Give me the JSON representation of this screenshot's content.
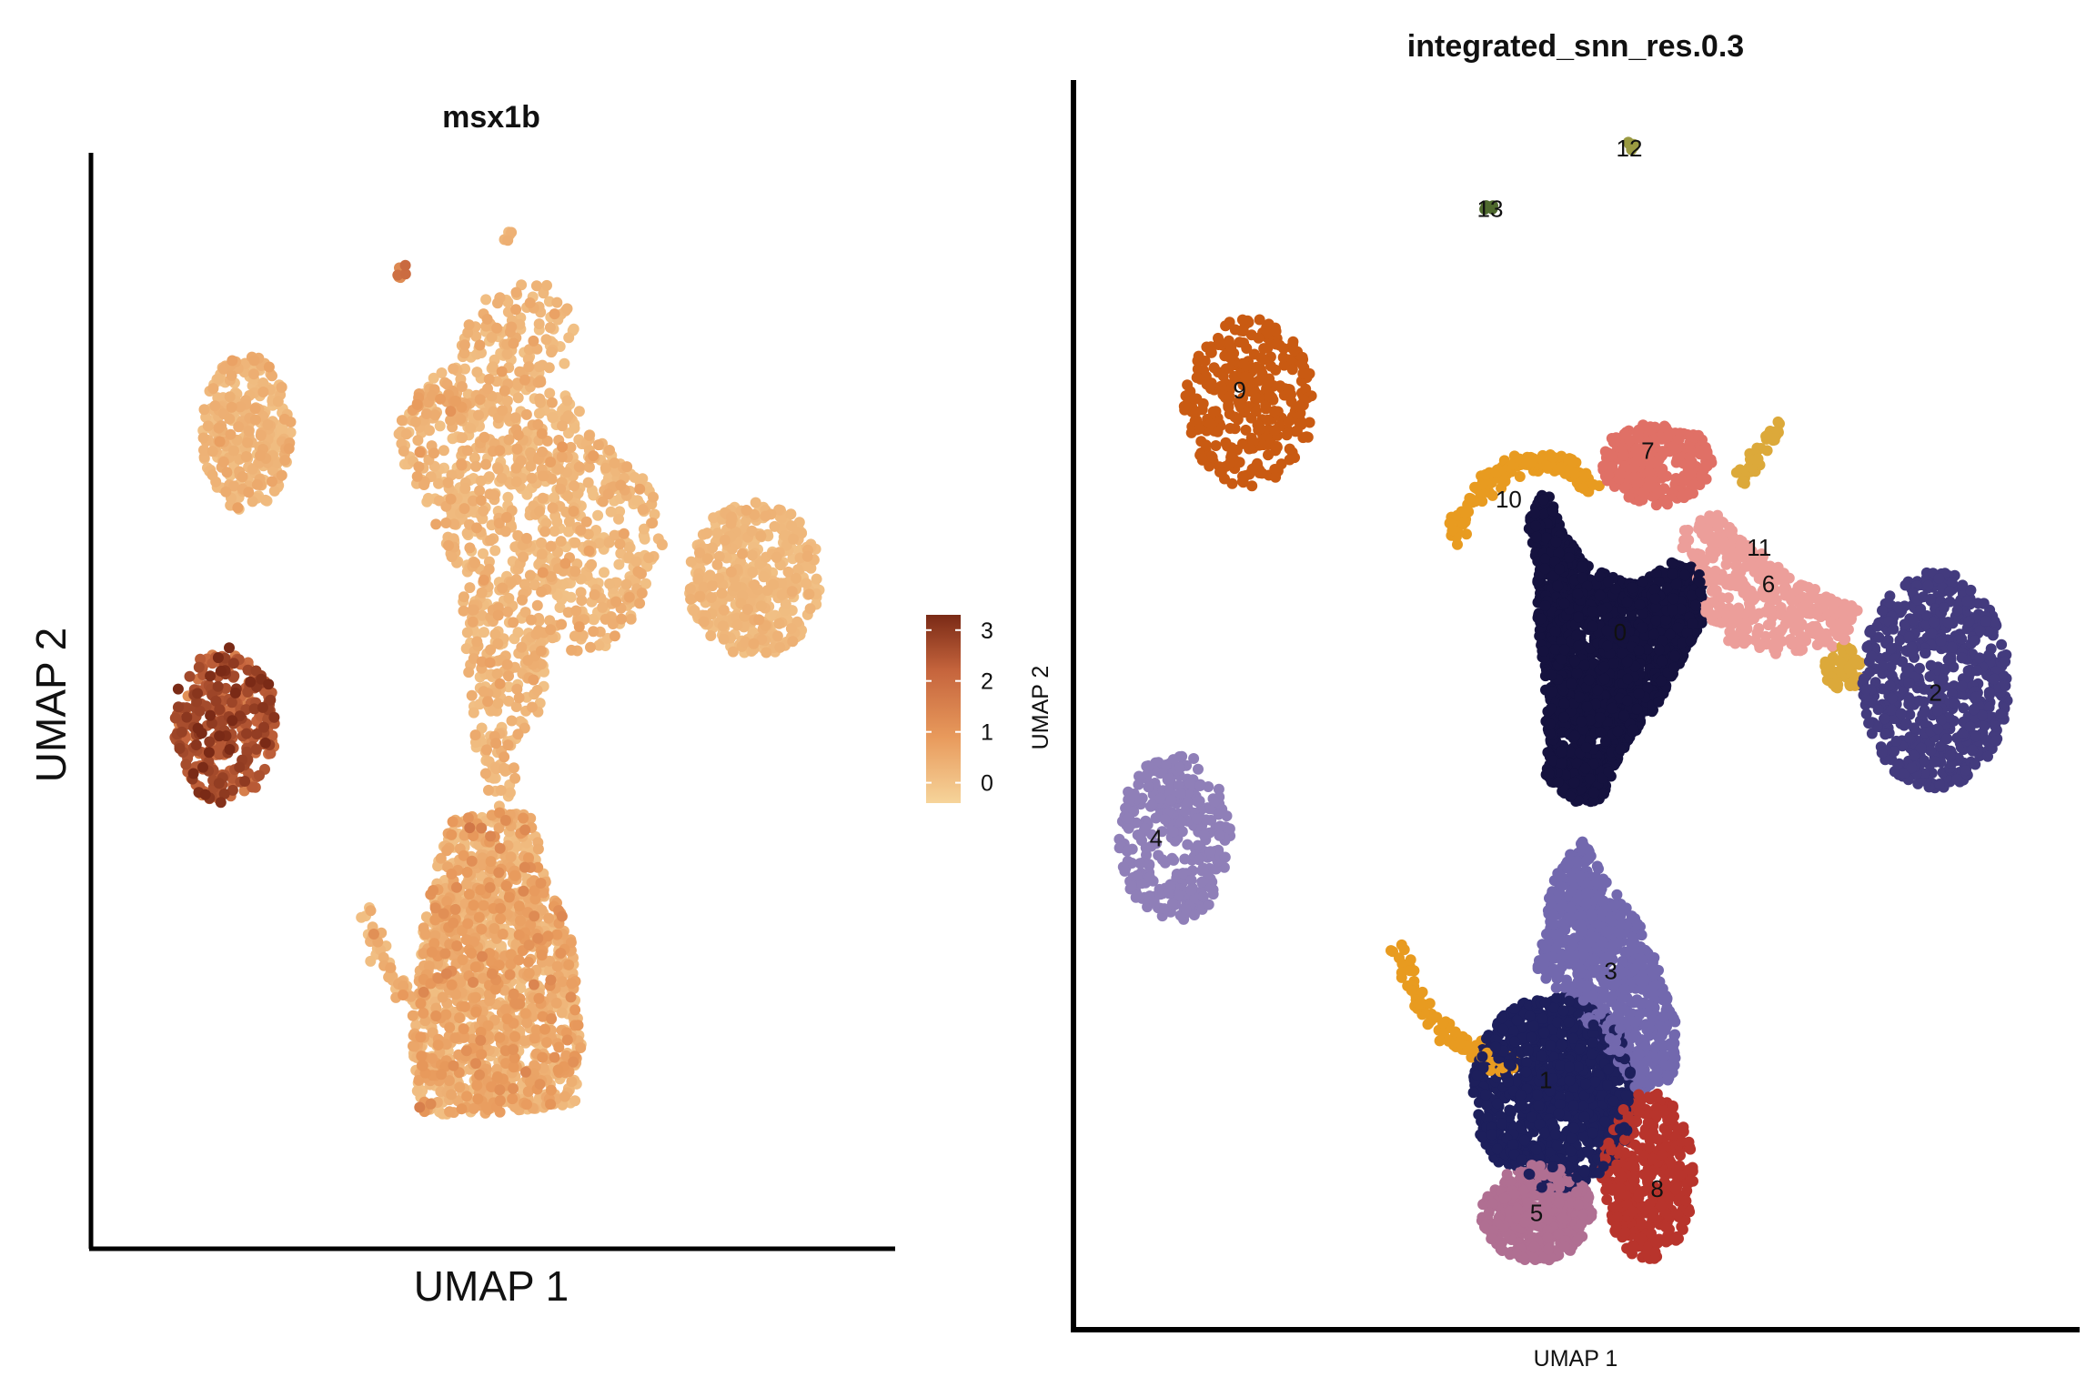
{
  "chart_data": [
    {
      "type": "scatter",
      "title": "msx1b",
      "xlabel": "UMAP 1",
      "ylabel": "UMAP 2",
      "xlim": [
        0,
        100
      ],
      "ylim": [
        0,
        100
      ],
      "grid": false,
      "legend": {
        "type": "colorbar",
        "placement": "right",
        "ticks": [
          0,
          1,
          2,
          3
        ],
        "tick_labels": [
          "0",
          "1",
          "2",
          "3"
        ],
        "range": [
          -0.4,
          3.3
        ],
        "colors": [
          "#f6d49a",
          "#e89a5c",
          "#c6653d",
          "#7a2a16"
        ]
      },
      "regions": [
        {
          "name": "main-upper-stem",
          "shape": "polygon",
          "points": [
            [
              47,
              91
            ],
            [
              55,
              93
            ],
            [
              58,
              92
            ],
            [
              60,
              88
            ],
            [
              58,
              82
            ],
            [
              64,
              76
            ],
            [
              70,
              72
            ],
            [
              72,
              66
            ],
            [
              68,
              58
            ],
            [
              64,
              55
            ],
            [
              57,
              54
            ],
            [
              55,
              48
            ],
            [
              52,
              42
            ],
            [
              52,
              36
            ],
            [
              49,
              36
            ],
            [
              47,
              42
            ],
            [
              46,
              50
            ],
            [
              45,
              58
            ],
            [
              45,
              62
            ],
            [
              42,
              66
            ],
            [
              40,
              70
            ],
            [
              37,
              74
            ],
            [
              36,
              78
            ],
            [
              40,
              82
            ],
            [
              43,
              84
            ]
          ],
          "n": 1100,
          "mean": 0.2,
          "sd": 0.2,
          "spread": 1
        },
        {
          "name": "right-lobe",
          "shape": "ellipse",
          "cx": 84,
          "cy": 62,
          "rx": 9,
          "ry": 8,
          "n": 450,
          "mean": 0.15,
          "sd": 0.12,
          "spread": 1
        },
        {
          "name": "hook-left",
          "shape": "curve",
          "points": [
            [
              37,
              78
            ],
            [
              39,
              80
            ],
            [
              41,
              81
            ],
            [
              44,
              80
            ],
            [
              46,
              78
            ]
          ],
          "n": 40,
          "mean": 0.3,
          "sd": 0.3,
          "spread": 1.2
        },
        {
          "name": "lower-body",
          "shape": "polygon",
          "points": [
            [
              44,
              38
            ],
            [
              54,
              38
            ],
            [
              57,
              30
            ],
            [
              60,
              24
            ],
            [
              61,
              14
            ],
            [
              60,
              8
            ],
            [
              48,
              7
            ],
            [
              39,
              7
            ],
            [
              38,
              16
            ],
            [
              39,
              22
            ],
            [
              40,
              28
            ],
            [
              42,
              34
            ]
          ],
          "n": 1400,
          "mean": 0.35,
          "sd": 0.35,
          "spread": 1
        },
        {
          "name": "lower-tail",
          "shape": "curve",
          "points": [
            [
              31,
              29
            ],
            [
              33,
              25
            ],
            [
              35,
              22
            ],
            [
              37,
              20
            ],
            [
              40,
              19
            ]
          ],
          "n": 45,
          "mean": 0.3,
          "sd": 0.3,
          "spread": 1.2
        },
        {
          "name": "upper-left-cluster",
          "shape": "ellipse",
          "cx": 16,
          "cy": 77,
          "rx": 6,
          "ry": 8,
          "n": 300,
          "mean": 0.2,
          "sd": 0.2,
          "spread": 1
        },
        {
          "name": "high-expression-cluster",
          "shape": "ellipse",
          "cx": 13,
          "cy": 47,
          "rx": 7,
          "ry": 8,
          "n": 330,
          "mean": 2.4,
          "sd": 0.5,
          "spread": 1
        },
        {
          "name": "isolated-a",
          "shape": "ellipse",
          "cx": 37,
          "cy": 93.5,
          "rx": 0.8,
          "ry": 0.8,
          "n": 6,
          "mean": 1.6,
          "sd": 0.3,
          "spread": 1
        },
        {
          "name": "isolated-b",
          "shape": "ellipse",
          "cx": 51,
          "cy": 97,
          "rx": 0.8,
          "ry": 0.8,
          "n": 6,
          "mean": 0.2,
          "sd": 0.1,
          "spread": 1
        }
      ]
    },
    {
      "type": "scatter",
      "title": "integrated_snn_res.0.3",
      "xlabel": "UMAP 1",
      "ylabel": "UMAP 2",
      "xlim": [
        0,
        100
      ],
      "ylim": [
        0,
        100
      ],
      "grid": false,
      "clusters": [
        {
          "id": "0",
          "label": "0",
          "color": "#15123f",
          "shape": "polygon",
          "points": [
            [
              46,
              68
            ],
            [
              48,
              64
            ],
            [
              52,
              61
            ],
            [
              56,
              60
            ],
            [
              60,
              62
            ],
            [
              63,
              61
            ],
            [
              63,
              57
            ],
            [
              58,
              50
            ],
            [
              54,
              46
            ],
            [
              52,
              42
            ],
            [
              49,
              42
            ],
            [
              46,
              44
            ],
            [
              46,
              50
            ],
            [
              45,
              58
            ],
            [
              45,
              62
            ],
            [
              44,
              65
            ]
          ],
          "n": 1800,
          "label_x": 54,
          "label_y": 56
        },
        {
          "id": "1",
          "label": "1",
          "color": "#1d1f5c",
          "shape": "ellipse",
          "cx": 47,
          "cy": 18,
          "rx": 9,
          "ry": 8,
          "n": 1100,
          "label_x": 46,
          "label_y": 19
        },
        {
          "id": "2",
          "label": "2",
          "color": "#433b7e",
          "shape": "ellipse",
          "cx": 88,
          "cy": 52,
          "rx": 8,
          "ry": 9,
          "n": 650,
          "label_x": 88,
          "label_y": 51
        },
        {
          "id": "3",
          "label": "3",
          "color": "#7268ae",
          "shape": "polygon",
          "points": [
            [
              47,
              36
            ],
            [
              50,
              39
            ],
            [
              52,
              36
            ],
            [
              57,
              31
            ],
            [
              60,
              24
            ],
            [
              60,
              19
            ],
            [
              56,
              18
            ],
            [
              52,
              22
            ],
            [
              48,
              26
            ],
            [
              45,
              28
            ],
            [
              46,
              33
            ]
          ],
          "n": 800,
          "label_x": 53,
          "label_y": 28
        },
        {
          "id": "4",
          "label": "4",
          "color": "#8f7fb8",
          "shape": "ellipse",
          "cx": 6,
          "cy": 39,
          "rx": 6,
          "ry": 7,
          "n": 320,
          "label_x": 4,
          "label_y": 39
        },
        {
          "id": "5",
          "label": "5",
          "color": "#b06f92",
          "shape": "ellipse",
          "cx": 45,
          "cy": 8,
          "rx": 6,
          "ry": 4,
          "n": 450,
          "label_x": 45,
          "label_y": 8
        },
        {
          "id": "6",
          "label": "6",
          "color": "#ec9e9a",
          "shape": "polygon",
          "points": [
            [
              60,
              64
            ],
            [
              64,
              66
            ],
            [
              69,
              63
            ],
            [
              76,
              59
            ],
            [
              80,
              58
            ],
            [
              78,
              55
            ],
            [
              72,
              54
            ],
            [
              66,
              55
            ],
            [
              63,
              57
            ],
            [
              62,
              61
            ]
          ],
          "n": 400,
          "label_x": 70,
          "label_y": 60
        },
        {
          "id": "7",
          "label": "7",
          "color": "#e07066",
          "shape": "ellipse",
          "cx": 58,
          "cy": 70,
          "rx": 6,
          "ry": 3.5,
          "n": 280,
          "label_x": 57,
          "label_y": 71
        },
        {
          "id": "8",
          "label": "8",
          "color": "#b8342c",
          "shape": "ellipse",
          "cx": 57,
          "cy": 11,
          "rx": 5,
          "ry": 7,
          "n": 420,
          "label_x": 58,
          "label_y": 10
        },
        {
          "id": "9",
          "label": "9",
          "color": "#c95a12",
          "shape": "ellipse",
          "cx": 14,
          "cy": 75,
          "rx": 7,
          "ry": 7,
          "n": 330,
          "label_x": 13,
          "label_y": 76
        },
        {
          "id": "10",
          "label": "10",
          "color": "#e89b20",
          "shape": "curve",
          "points": [
            [
              36,
              64
            ],
            [
              39,
              68
            ],
            [
              43,
              70
            ],
            [
              48,
              70
            ],
            [
              51,
              68
            ]
          ],
          "n": 160,
          "label_x": 42,
          "label_y": 67
        },
        {
          "id": "10b",
          "label": "",
          "color": "#e89b20",
          "shape": "curve",
          "points": [
            [
              30,
              30
            ],
            [
              32,
              26
            ],
            [
              35,
              23
            ],
            [
              39,
              21
            ],
            [
              42,
              20
            ]
          ],
          "n": 100,
          "label_x": 0,
          "label_y": 0
        },
        {
          "id": "11",
          "label": "11",
          "color": "#dca93a",
          "shape": "curve",
          "points": [
            [
              67,
              68
            ],
            [
              68,
              70
            ],
            [
              70,
              72
            ],
            [
              71,
              73
            ]
          ],
          "n": 40,
          "label_x": 69,
          "label_y": 63
        },
        {
          "id": "11b",
          "label": "",
          "color": "#dca93a",
          "shape": "ellipse",
          "cx": 78,
          "cy": 53,
          "rx": 2,
          "ry": 2,
          "n": 60,
          "label_x": 0,
          "label_y": 0
        },
        {
          "id": "12",
          "label": "12",
          "color": "#9a9a42",
          "shape": "ellipse",
          "cx": 55,
          "cy": 96,
          "rx": 0.6,
          "ry": 0.6,
          "n": 6,
          "label_x": 55,
          "label_y": 96
        },
        {
          "id": "13",
          "label": "13",
          "color": "#4f6a2e",
          "shape": "ellipse",
          "cx": 40,
          "cy": 91,
          "rx": 0.6,
          "ry": 0.6,
          "n": 6,
          "label_x": 40,
          "label_y": 91
        }
      ]
    }
  ]
}
